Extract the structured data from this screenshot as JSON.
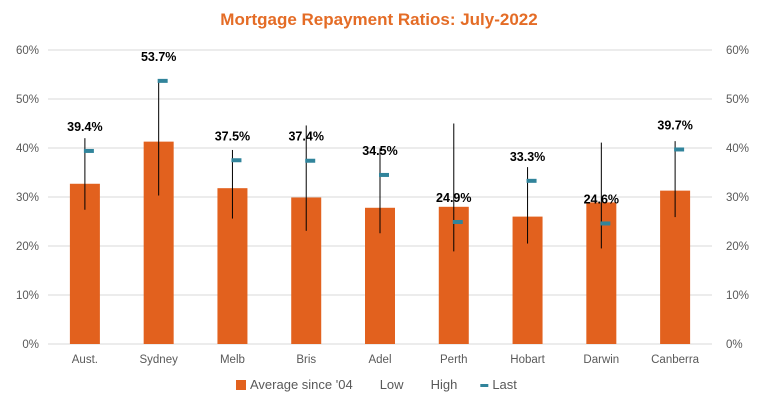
{
  "chart_data": {
    "type": "bar",
    "title": "Mortgage Repayment Ratios: July-2022",
    "categories": [
      "Aust.",
      "Sydney",
      "Melb",
      "Bris",
      "Adel",
      "Perth",
      "Hobart",
      "Darwin",
      "Canberra"
    ],
    "series": [
      {
        "name": "Average since '04",
        "kind": "bar",
        "values": [
          32.7,
          41.3,
          31.8,
          29.9,
          27.8,
          28.0,
          26.0,
          28.9,
          31.3
        ]
      },
      {
        "name": "Low",
        "kind": "range-low",
        "values": [
          27.4,
          30.3,
          25.6,
          23.1,
          22.6,
          18.9,
          20.5,
          19.5,
          25.9
        ]
      },
      {
        "name": "High",
        "kind": "range-high",
        "values": [
          42.0,
          53.7,
          39.6,
          44.6,
          39.9,
          45.0,
          36.1,
          41.1,
          41.4
        ]
      },
      {
        "name": "Last",
        "kind": "marker",
        "values": [
          39.4,
          53.7,
          37.5,
          37.4,
          34.5,
          24.9,
          33.3,
          24.6,
          39.7
        ]
      }
    ],
    "data_labels": [
      "39.4%",
      "53.7%",
      "37.5%",
      "37.4%",
      "34.5%",
      "24.9%",
      "33.3%",
      "24.6%",
      "39.7%"
    ],
    "yticks": [
      "0%",
      "10%",
      "20%",
      "30%",
      "40%",
      "50%",
      "60%"
    ],
    "ylim": [
      0,
      60
    ],
    "y2ticks": [
      "0%",
      "10%",
      "20%",
      "30%",
      "40%",
      "50%",
      "60%"
    ],
    "grid": true,
    "legend_position": "bottom",
    "colors": {
      "title": "#E46C26",
      "bar": "#E2611E",
      "marker": "#31849B",
      "range_line": "#000000",
      "grid": "#D9D9D9"
    }
  }
}
